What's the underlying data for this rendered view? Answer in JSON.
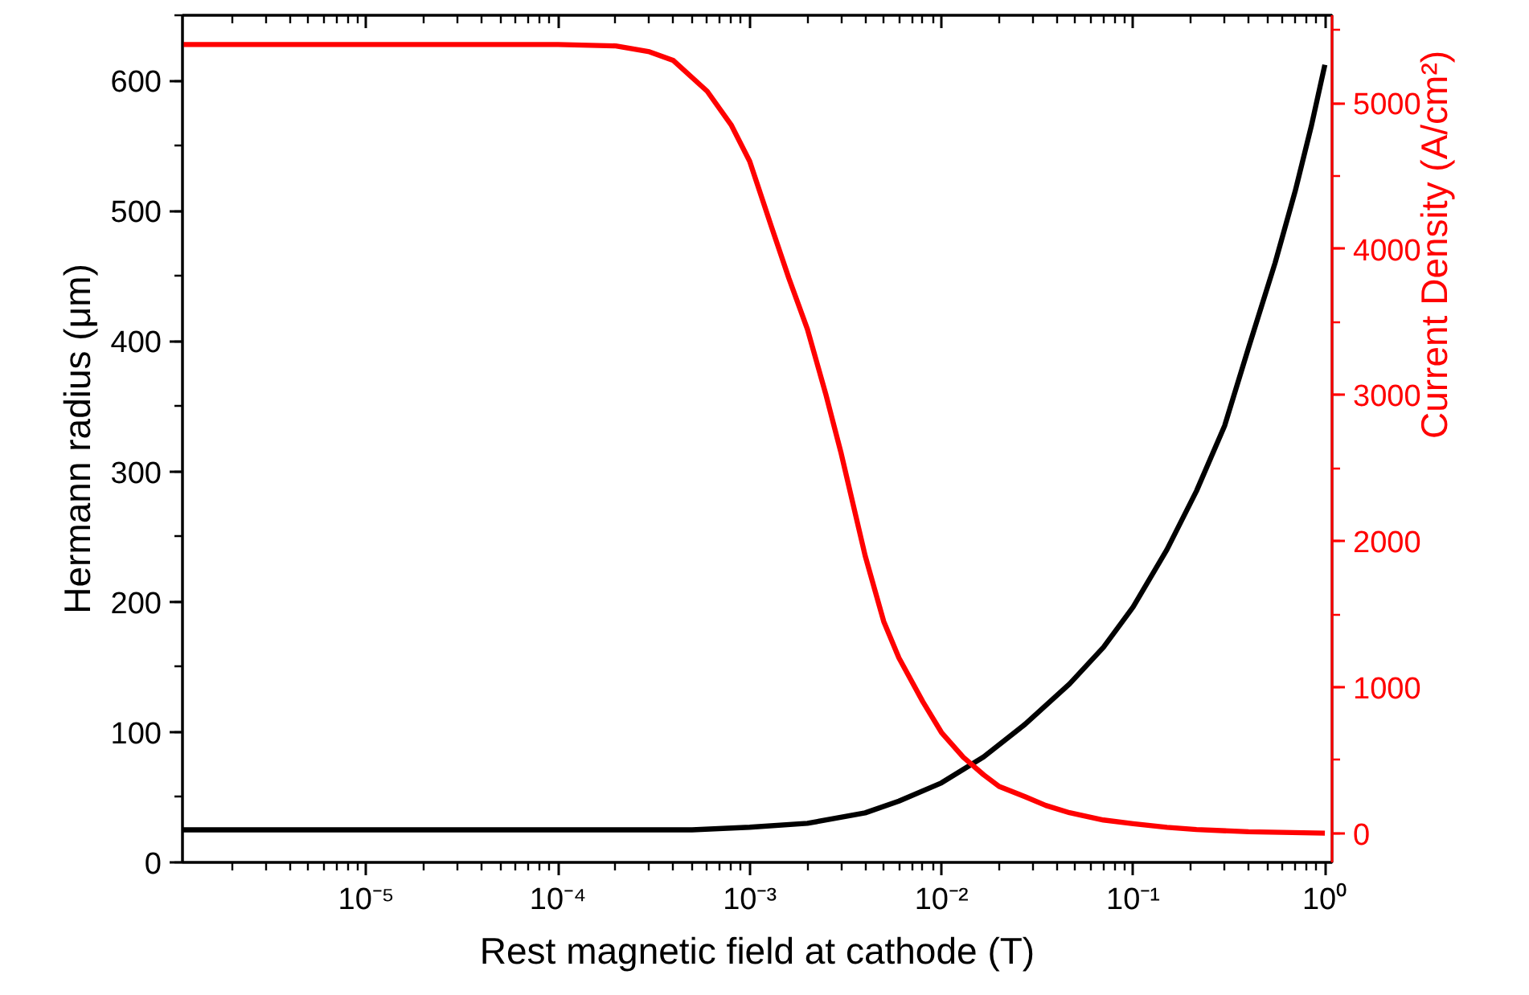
{
  "chart_data": {
    "type": "line",
    "xlabel": "Rest magnetic field at cathode (T)",
    "ylabel": "Hermann radius (μm)",
    "y2label": "Current Density (A/cm²)",
    "log": "x",
    "grid": false,
    "line_style": "solid",
    "marker": "none",
    "xlim": [
      1.1e-06,
      1.09
    ],
    "xticks": [
      {
        "value": 1e-05,
        "label": "10⁻⁵"
      },
      {
        "value": 0.0001,
        "label": "10⁻⁴"
      },
      {
        "value": 0.001,
        "label": "10⁻³"
      },
      {
        "value": 0.01,
        "label": "10⁻²"
      },
      {
        "value": 0.1,
        "label": "10⁻¹"
      },
      {
        "value": 1,
        "label": "10⁰"
      }
    ],
    "ylim": [
      0,
      650
    ],
    "yticks": [
      0,
      100,
      200,
      300,
      400,
      500,
      600
    ],
    "y2lim": [
      -200,
      5600
    ],
    "y2ticks": [
      0,
      1000,
      2000,
      3000,
      4000,
      5000
    ],
    "series": [
      {
        "color": "#000000",
        "x": [
          1.1e-06,
          0.0001,
          0.0005,
          0.001,
          0.002,
          0.004,
          0.006,
          0.01,
          0.0166,
          0.0273,
          0.0466,
          0.07,
          0.1,
          0.15,
          0.214,
          0.3,
          0.4,
          0.55,
          0.7,
          0.85,
          1.0
        ],
        "values": [
          25,
          25,
          25,
          27,
          30,
          38,
          47,
          61,
          81,
          106,
          137,
          165,
          196,
          240,
          285,
          335,
          395,
          460,
          515,
          565,
          612
        ]
      },
      {
        "color": "#ff0000",
        "axis": "y2",
        "x": [
          1.1e-06,
          0.0001,
          0.0002,
          0.0003,
          0.0004,
          0.0006,
          0.0008,
          0.001,
          0.0013,
          0.0016,
          0.002,
          0.0025,
          0.003,
          0.004,
          0.005,
          0.006,
          0.008,
          0.01,
          0.013,
          0.0166,
          0.02,
          0.0273,
          0.035,
          0.0466,
          0.07,
          0.1,
          0.15,
          0.214,
          0.4,
          1.0
        ],
        "values": [
          5400,
          5400,
          5390,
          5350,
          5290,
          5080,
          4850,
          4600,
          4150,
          3800,
          3450,
          3000,
          2600,
          1900,
          1450,
          1200,
          900,
          690,
          520,
          400,
          320,
          250,
          190,
          140,
          90,
          65,
          40,
          25,
          10,
          0
        ]
      }
    ]
  }
}
